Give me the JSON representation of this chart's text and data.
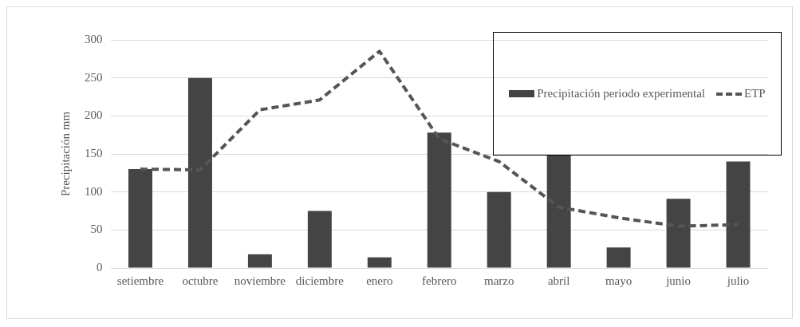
{
  "chart_data": {
    "type": "bar",
    "ylabel": "Precipitación mm",
    "categories": [
      "setiembre",
      "octubre",
      "noviembre",
      "diciembre",
      "enero",
      "febrero",
      "marzo",
      "abril",
      "mayo",
      "junio",
      "julio"
    ],
    "series": [
      {
        "name": "Precipitación periodo experimental",
        "color": "#444444",
        "values": [
          130,
          250,
          18,
          75,
          14,
          178,
          100,
          149,
          27,
          91,
          140
        ]
      },
      {
        "name": "ETP",
        "type": "line",
        "color": "#555555",
        "line_style": "dashed",
        "values": [
          130,
          129,
          208,
          221,
          285,
          170,
          140,
          80,
          66,
          55,
          57
        ]
      }
    ],
    "ylim": [
      0,
      300
    ],
    "yticks": [
      0,
      50,
      100,
      150,
      200,
      250,
      300
    ],
    "grid": "y",
    "legend": "top right",
    "marker": "none"
  }
}
